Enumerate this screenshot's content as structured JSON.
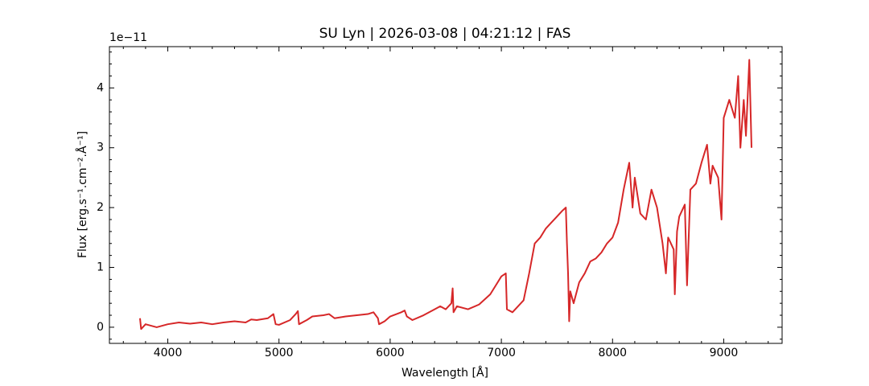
{
  "chart_data": {
    "type": "line",
    "title": "SU Lyn | 2026-03-08 | 04:21:12 | FAS",
    "xlabel": "Wavelength [Å]",
    "ylabel": "Flux [erg.s⁻¹.cm⁻².Å⁻¹]",
    "y_offset_label": "1e−11",
    "xlim": [
      3475,
      9525
    ],
    "ylim": [
      -0.27,
      4.69
    ],
    "xticks": [
      4000,
      5000,
      6000,
      7000,
      8000,
      9000
    ],
    "yticks": [
      0,
      1,
      2,
      3,
      4
    ],
    "xminorticks": [
      3600,
      3800,
      4200,
      4400,
      4600,
      4800,
      5200,
      5400,
      5600,
      5800,
      6200,
      6400,
      6600,
      6800,
      7200,
      7400,
      7600,
      7800,
      8200,
      8400,
      8600,
      8800,
      9200,
      9400
    ],
    "yminorticks": [
      -0.2,
      0.2,
      0.4,
      0.6,
      0.8,
      1.2,
      1.4,
      1.6,
      1.8,
      2.2,
      2.4,
      2.6,
      2.8,
      3.2,
      3.4,
      3.6,
      3.8,
      4.2,
      4.4,
      4.6
    ],
    "x": [
      3750,
      3760,
      3800,
      3900,
      4000,
      4100,
      4200,
      4300,
      4400,
      4500,
      4600,
      4700,
      4750,
      4800,
      4900,
      4950,
      4970,
      5000,
      5100,
      5150,
      5170,
      5180,
      5250,
      5300,
      5400,
      5450,
      5500,
      5600,
      5700,
      5800,
      5850,
      5890,
      5900,
      5950,
      6000,
      6100,
      6130,
      6150,
      6200,
      6300,
      6400,
      6450,
      6500,
      6550,
      6562,
      6570,
      6600,
      6700,
      6800,
      6900,
      6950,
      7000,
      7040,
      7050,
      7100,
      7200,
      7250,
      7300,
      7350,
      7400,
      7450,
      7500,
      7550,
      7580,
      7590,
      7600,
      7610,
      7620,
      7650,
      7700,
      7750,
      7800,
      7850,
      7900,
      7950,
      8000,
      8050,
      8100,
      8150,
      8180,
      8200,
      8250,
      8300,
      8350,
      8400,
      8450,
      8480,
      8500,
      8550,
      8560,
      8580,
      8600,
      8650,
      8670,
      8700,
      8750,
      8800,
      8850,
      8880,
      8900,
      8950,
      8980,
      9000,
      9050,
      9100,
      9130,
      9150,
      9180,
      9200,
      9230,
      9250
    ],
    "series": [
      {
        "color": "#d62728",
        "values": [
          0.15,
          -0.03,
          0.05,
          0.0,
          0.05,
          0.08,
          0.06,
          0.08,
          0.05,
          0.08,
          0.1,
          0.08,
          0.13,
          0.12,
          0.15,
          0.22,
          0.05,
          0.04,
          0.12,
          0.22,
          0.27,
          0.05,
          0.12,
          0.18,
          0.2,
          0.22,
          0.15,
          0.18,
          0.2,
          0.22,
          0.25,
          0.15,
          0.05,
          0.1,
          0.18,
          0.25,
          0.28,
          0.18,
          0.12,
          0.2,
          0.3,
          0.35,
          0.3,
          0.4,
          0.65,
          0.25,
          0.35,
          0.3,
          0.38,
          0.55,
          0.7,
          0.85,
          0.9,
          0.3,
          0.25,
          0.45,
          0.9,
          1.4,
          1.5,
          1.65,
          1.75,
          1.85,
          1.95,
          2.0,
          1.4,
          0.9,
          0.1,
          0.6,
          0.4,
          0.75,
          0.9,
          1.1,
          1.15,
          1.25,
          1.4,
          1.5,
          1.75,
          2.3,
          2.75,
          2.0,
          2.5,
          1.9,
          1.8,
          2.3,
          2.0,
          1.4,
          0.9,
          1.5,
          1.3,
          0.55,
          1.6,
          1.85,
          2.05,
          0.7,
          2.3,
          2.4,
          2.75,
          3.05,
          2.4,
          2.7,
          2.5,
          1.8,
          3.5,
          3.8,
          3.5,
          4.2,
          3.0,
          3.8,
          3.2,
          4.47,
          3.0
        ]
      }
    ]
  }
}
